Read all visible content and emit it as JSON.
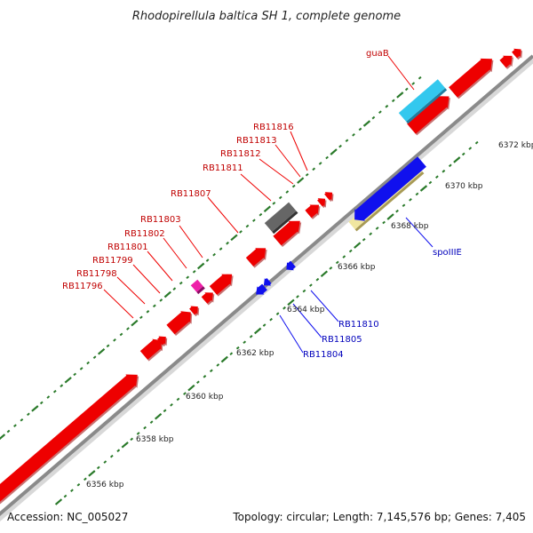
{
  "title": "Rhodopirellula baltica SH 1, complete genome",
  "footer": {
    "accession": "Accession: NC_005027",
    "summary": "Topology: circular; Length: 7,145,576 bp; Genes: 7,405"
  },
  "colors": {
    "forward_gene": "#ee0000",
    "reverse_gene": "#1010ee",
    "label_forward": "#c00000",
    "label_reverse": "#0000bb",
    "backbone": "#8a8a8a",
    "ticks": "#2a7a2a",
    "highlight_cyan": "#33c8ee",
    "highlight_yellow": "#f0e6a0",
    "highlight_gray": "#666666",
    "highlight_magenta": "#ee1fa8"
  },
  "scale": {
    "tick_labels": [
      "6356 kbp",
      "6358 kbp",
      "6360 kbp",
      "6362 kbp",
      "6364 kbp",
      "6366 kbp",
      "6368 kbp",
      "6370 kbp",
      "6372 kbp"
    ]
  },
  "labels_forward": [
    "guaB",
    "RB11816",
    "RB11813",
    "RB11812",
    "RB11811",
    "RB11807",
    "RB11803",
    "RB11802",
    "RB11801",
    "RB11799",
    "RB11798",
    "RB11796"
  ],
  "labels_reverse": [
    "spoIIIE",
    "RB11810",
    "RB11805",
    "RB11804"
  ]
}
